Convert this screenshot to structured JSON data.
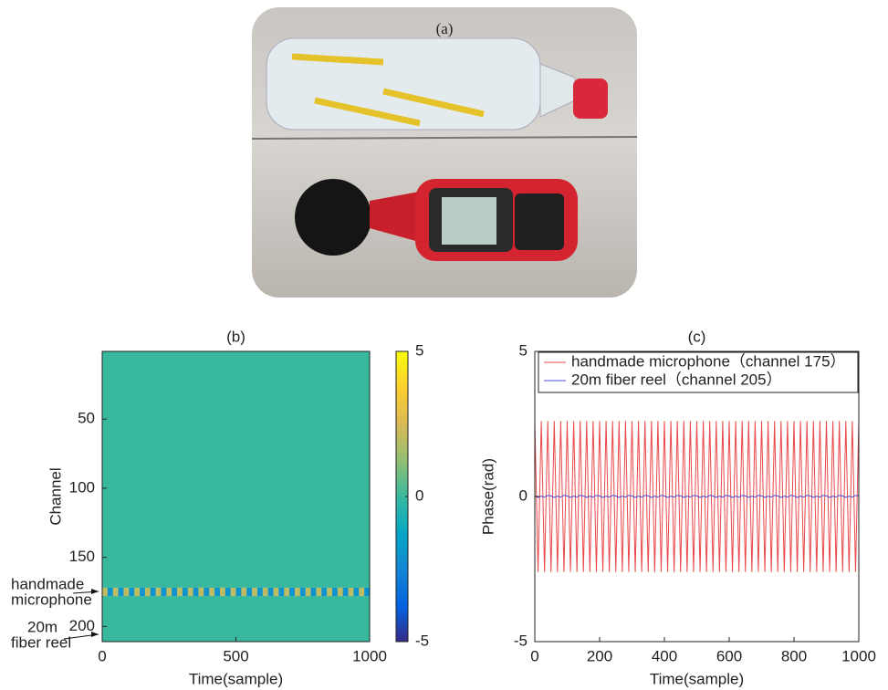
{
  "photo_label": "(a)",
  "chart_data": [
    {
      "type": "heatmap",
      "title": "(b)",
      "x_label": "Time(sample)",
      "y_label": "Channel",
      "xlim": [
        0,
        1000
      ],
      "xticks": [
        0,
        500,
        1000
      ],
      "ylim": [
        1,
        211
      ],
      "yticks": [
        50,
        100,
        150,
        200
      ],
      "y_reversed": true,
      "colormap": "parula",
      "clim": [
        -5,
        5
      ],
      "cticks": [
        -5,
        0,
        5
      ],
      "x_edges": [
        0,
        20,
        40,
        60,
        80,
        100,
        120,
        140,
        160,
        180,
        200,
        220,
        240,
        260,
        280,
        300,
        320,
        340,
        360,
        380,
        400,
        420,
        440,
        460,
        480,
        500,
        520,
        540,
        560,
        580,
        600,
        620,
        640,
        660,
        680,
        700,
        720,
        740,
        760,
        780,
        800,
        820,
        840,
        860,
        880,
        900,
        920,
        940,
        960,
        980,
        1000
      ],
      "y_edges": [
        1,
        172,
        178,
        211
      ],
      "z": [
        [
          0,
          0,
          0,
          0,
          0,
          0,
          0,
          0,
          0,
          0,
          0,
          0,
          0,
          0,
          0,
          0,
          0,
          0,
          0,
          0,
          0,
          0,
          0,
          0,
          0,
          0,
          0,
          0,
          0,
          0,
          0,
          0,
          0,
          0,
          0,
          0,
          0,
          0,
          0,
          0,
          0,
          0,
          0,
          0,
          0,
          0,
          0,
          0,
          0,
          0
        ],
        [
          2,
          -2,
          2,
          -2,
          2,
          -2,
          2,
          -2,
          2,
          -2,
          2,
          -2,
          2,
          -2,
          2,
          -2,
          2,
          -2,
          2,
          -2,
          2,
          -2,
          2,
          -2,
          2,
          -2,
          2,
          -2,
          2,
          -2,
          2,
          -2,
          2,
          -2,
          2,
          -2,
          2,
          -2,
          2,
          -2,
          2,
          -2,
          2,
          -2,
          2,
          -2,
          2,
          -2,
          2,
          -2
        ],
        [
          0,
          0,
          0,
          0,
          0,
          0,
          0,
          0,
          0,
          0,
          0,
          0,
          0,
          0,
          0,
          0,
          0,
          0,
          0,
          0,
          0,
          0,
          0,
          0,
          0,
          0,
          0,
          0,
          0,
          0,
          0,
          0,
          0,
          0,
          0,
          0,
          0,
          0,
          0,
          0,
          0,
          0,
          0,
          0,
          0,
          0,
          0,
          0,
          0,
          0
        ]
      ],
      "annotations": [
        {
          "lines": [
            "handmade",
            "microphone"
          ]
        },
        {
          "lines": [
            "20m",
            "fiber reel"
          ]
        }
      ]
    },
    {
      "type": "line",
      "title": "(c)",
      "x_label": "Time(sample)",
      "y_label": "Phase(rad)",
      "xlim": [
        0,
        1000
      ],
      "xticks": [
        0,
        200,
        400,
        600,
        800,
        1000
      ],
      "ylim": [
        -5,
        5
      ],
      "yticks": [
        -5,
        0,
        5
      ],
      "x": [
        0,
        10,
        20,
        30,
        40,
        50,
        60,
        70,
        80,
        90,
        100,
        110,
        120,
        130,
        140,
        150,
        160,
        170,
        180,
        190,
        200,
        210,
        220,
        230,
        240,
        250,
        260,
        270,
        280,
        290,
        300,
        310,
        320,
        330,
        340,
        350,
        360,
        370,
        380,
        390,
        400,
        410,
        420,
        430,
        440,
        450,
        460,
        470,
        480,
        490,
        500,
        510,
        520,
        530,
        540,
        550,
        560,
        570,
        580,
        590,
        600,
        610,
        620,
        630,
        640,
        650,
        660,
        670,
        680,
        690,
        700,
        710,
        720,
        730,
        740,
        750,
        760,
        770,
        780,
        790,
        800,
        810,
        820,
        830,
        840,
        850,
        860,
        870,
        880,
        890,
        900,
        910,
        920,
        930,
        940,
        950,
        960,
        970,
        980,
        990,
        1000
      ],
      "series": [
        {
          "name": "handmade microphone（channel 175）",
          "color": "#e8484a",
          "values": [
            2.6,
            -2.6,
            2.6,
            -2.6,
            2.6,
            -2.6,
            2.6,
            -2.6,
            2.6,
            -2.6,
            2.6,
            -2.6,
            2.6,
            -2.6,
            2.6,
            -2.6,
            2.6,
            -2.6,
            2.6,
            -2.6,
            2.6,
            -2.6,
            2.6,
            -2.6,
            2.6,
            -2.6,
            2.6,
            -2.6,
            2.6,
            -2.6,
            2.6,
            -2.6,
            2.6,
            -2.6,
            2.6,
            -2.6,
            2.6,
            -2.6,
            2.6,
            -2.6,
            2.6,
            -2.6,
            2.6,
            -2.6,
            2.6,
            -2.6,
            2.6,
            -2.6,
            2.6,
            -2.6,
            2.6,
            -2.6,
            2.6,
            -2.6,
            2.6,
            -2.6,
            2.6,
            -2.6,
            2.6,
            -2.6,
            2.6,
            -2.6,
            2.6,
            -2.6,
            2.6,
            -2.6,
            2.6,
            -2.6,
            2.6,
            -2.6,
            2.6,
            -2.6,
            2.6,
            -2.6,
            2.6,
            -2.6,
            2.6,
            -2.6,
            2.6,
            -2.6,
            2.6,
            -2.6,
            2.6,
            -2.6,
            2.6,
            -2.6,
            2.6,
            -2.6,
            2.6,
            -2.6,
            2.6,
            -2.6,
            2.6,
            -2.6,
            2.6,
            -2.6,
            2.6,
            -2.6,
            2.6,
            -2.6,
            2.6
          ]
        },
        {
          "name": "20m fiber reel（channel 205）",
          "color": "#4a4ad0",
          "values": [
            0.02,
            -0.03,
            0.01,
            -0.02,
            0.04,
            0.02,
            -0.03,
            0.01,
            -0.02,
            0.04,
            0.02,
            -0.03,
            0.01,
            -0.02,
            0.04,
            0.02,
            -0.03,
            0.01,
            -0.02,
            0.04,
            0.02,
            -0.03,
            0.01,
            -0.02,
            0.04,
            0.02,
            -0.03,
            0.01,
            -0.02,
            0.04,
            0.02,
            -0.03,
            0.01,
            -0.02,
            0.04,
            0.02,
            -0.03,
            0.01,
            -0.02,
            0.04,
            0.02,
            -0.03,
            0.01,
            -0.02,
            0.04,
            0.02,
            -0.03,
            0.01,
            -0.02,
            0.04,
            0.02,
            -0.03,
            0.01,
            -0.02,
            0.04,
            0.02,
            -0.03,
            0.01,
            -0.02,
            0.04,
            0.02,
            -0.03,
            0.01,
            -0.02,
            0.04,
            0.02,
            -0.03,
            0.01,
            -0.02,
            0.04,
            0.02,
            -0.03,
            0.01,
            -0.02,
            0.04,
            0.02,
            -0.03,
            0.01,
            -0.02,
            0.04,
            0.02,
            -0.03,
            0.01,
            -0.02,
            0.04,
            0.02,
            -0.03,
            0.01,
            -0.02,
            0.04,
            0.02,
            -0.03,
            0.01,
            -0.02,
            0.04,
            0.02,
            -0.03,
            0.01,
            -0.02,
            0.04,
            0.02
          ]
        }
      ]
    }
  ]
}
